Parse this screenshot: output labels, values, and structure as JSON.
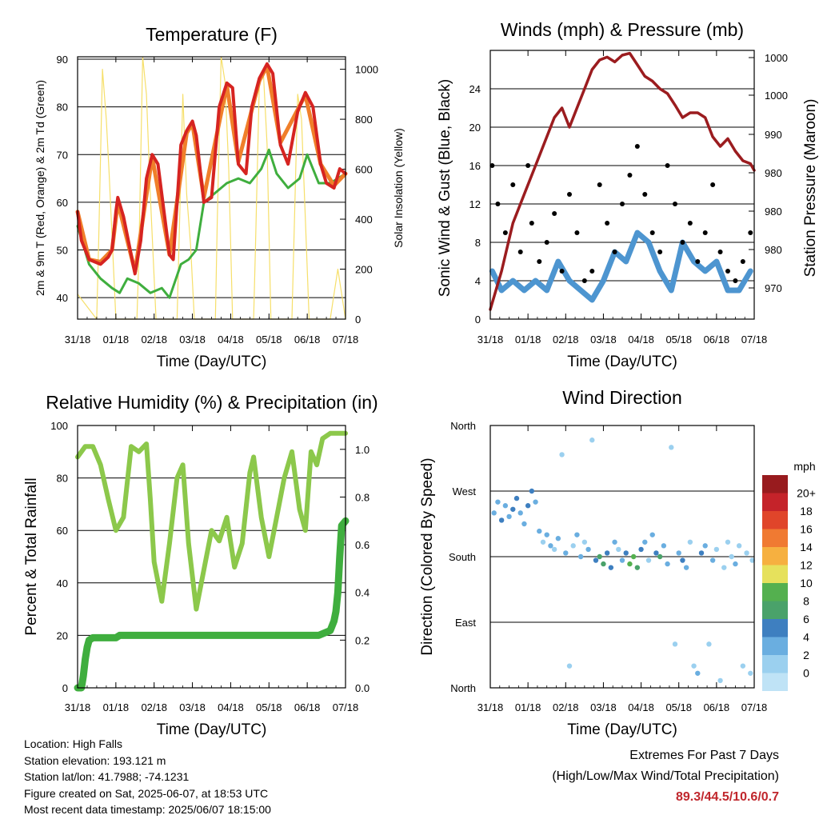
{
  "colors": {
    "temp_2m": "#d62421",
    "temp_9m": "#f07f2a",
    "dewpoint": "#3fae3e",
    "solar": "#f6df6a",
    "wind": "#4d95d0",
    "gust": "#000000",
    "pressure": "#9b1c1f",
    "rh": "#8cc84b",
    "precip": "#3fae3e"
  },
  "chart_data": [
    {
      "type": "line",
      "title": "Temperature (F)",
      "xlabel": "Time (Day/UTC)",
      "ylabel": "2m & 9m T (Red, Orange) & 2m Td (Green)",
      "y2label": "Solar Insolation (Yellow)",
      "x_ticks": [
        "31/18",
        "01/18",
        "02/18",
        "03/18",
        "04/18",
        "05/18",
        "06/18",
        "07/18"
      ],
      "xlim": [
        0,
        7
      ],
      "ylim": [
        35.5,
        90.5
      ],
      "y_ticks": [
        40,
        50,
        60,
        70,
        80,
        90
      ],
      "y2lim": [
        0,
        1050
      ],
      "y2_ticks": [
        0,
        200,
        400,
        600,
        800,
        1000
      ],
      "grid": true,
      "series": [
        {
          "name": "2m T",
          "axis": "left",
          "x": [
            0,
            0.1,
            0.3,
            0.6,
            0.8,
            0.9,
            1.0,
            1.05,
            1.2,
            1.5,
            1.65,
            1.8,
            1.95,
            2.1,
            2.4,
            2.5,
            2.7,
            2.85,
            3.0,
            3.1,
            3.3,
            3.5,
            3.7,
            3.9,
            4.05,
            4.2,
            4.4,
            4.55,
            4.75,
            4.95,
            5.1,
            5.3,
            5.5,
            5.75,
            5.95,
            6.15,
            6.35,
            6.5,
            6.7,
            6.85,
            7.0
          ],
          "y": [
            58,
            52,
            48,
            47,
            48.5,
            50,
            58,
            61,
            57,
            45,
            52,
            65,
            70,
            68,
            49,
            48,
            72,
            75,
            77,
            74,
            60,
            61,
            80,
            85,
            84,
            68,
            66,
            80,
            86,
            89,
            87,
            72,
            68,
            79,
            83,
            80,
            68,
            64,
            63,
            67,
            66
          ]
        },
        {
          "name": "9m T",
          "axis": "left",
          "x": [
            0,
            0.3,
            0.6,
            0.9,
            1.05,
            1.5,
            1.95,
            2.4,
            2.85,
            3.0,
            3.3,
            3.9,
            4.2,
            4.75,
            4.95,
            5.3,
            5.95,
            6.35,
            6.7,
            7.0
          ],
          "y": [
            58,
            48,
            47.5,
            50,
            60,
            45.5,
            69.5,
            49,
            74.5,
            76.5,
            61,
            84.5,
            68.5,
            85.5,
            88.5,
            72.5,
            82.5,
            68,
            63.5,
            66
          ]
        },
        {
          "name": "2m Td",
          "axis": "left",
          "x": [
            0,
            0.3,
            0.6,
            0.9,
            1.1,
            1.3,
            1.6,
            1.9,
            2.2,
            2.4,
            2.7,
            2.9,
            3.1,
            3.3,
            3.6,
            3.9,
            4.2,
            4.5,
            4.8,
            5.0,
            5.2,
            5.5,
            5.8,
            6.0,
            6.3,
            6.6,
            7.0
          ],
          "y": [
            55,
            47,
            44,
            42,
            41,
            44,
            43,
            41,
            42,
            40,
            47,
            48,
            50,
            60,
            62,
            64,
            65,
            64,
            67,
            71,
            66,
            63,
            65,
            70,
            64,
            64,
            66
          ]
        },
        {
          "name": "Solar Insolation",
          "axis": "right",
          "x": [
            0,
            0.5,
            0.55,
            0.65,
            0.75,
            0.82,
            1.0,
            1.55,
            1.6,
            1.7,
            1.8,
            1.9,
            2.05,
            2.6,
            2.65,
            2.75,
            2.85,
            2.95,
            3.05,
            3.6,
            3.65,
            3.75,
            3.85,
            3.95,
            4.05,
            4.6,
            4.65,
            4.75,
            4.85,
            4.95,
            5.05,
            5.6,
            5.65,
            5.75,
            5.85,
            5.95,
            6.05,
            6.6,
            6.7,
            6.8,
            6.9,
            7.0
          ],
          "y": [
            100,
            0,
            300,
            1000,
            800,
            600,
            0,
            0,
            250,
            1050,
            900,
            500,
            0,
            0,
            300,
            900,
            500,
            300,
            0,
            0,
            400,
            1050,
            950,
            600,
            0,
            0,
            300,
            950,
            1000,
            700,
            0,
            0,
            300,
            900,
            800,
            400,
            0,
            0,
            100,
            200,
            100,
            0
          ]
        }
      ]
    },
    {
      "type": "scatter",
      "title": "Winds (mph) & Pressure (mb)",
      "xlabel": "Time (Day/UTC)",
      "ylabel": "Sonic Wind & Gust (Blue, Black)",
      "y2label": "Station Pressure (Maroon)",
      "x_ticks": [
        "31/18",
        "01/18",
        "02/18",
        "03/18",
        "04/18",
        "05/18",
        "06/18",
        "07/18"
      ],
      "xlim": [
        0,
        7
      ],
      "ylim": [
        0,
        28
      ],
      "y_ticks": [
        0,
        4,
        8,
        12,
        16,
        20,
        24
      ],
      "y2_tick_labels": [
        "970",
        "980",
        "980",
        "980",
        "990",
        "1000",
        "1000"
      ],
      "grid": true,
      "series": [
        {
          "name": "Station Pressure",
          "axis": "right",
          "x": [
            0,
            0.3,
            0.6,
            0.9,
            1.2,
            1.5,
            1.7,
            1.9,
            2.1,
            2.3,
            2.5,
            2.7,
            2.9,
            3.1,
            3.3,
            3.5,
            3.7,
            3.9,
            4.1,
            4.3,
            4.5,
            4.7,
            4.9,
            5.1,
            5.3,
            5.5,
            5.7,
            5.9,
            6.1,
            6.3,
            6.5,
            6.7,
            6.9,
            7.0
          ],
          "y": [
            1,
            5,
            10,
            13,
            16,
            19,
            21,
            22,
            20,
            22,
            24,
            26,
            27,
            27.3,
            26.8,
            27.5,
            27.7,
            26.5,
            25.3,
            24.8,
            24,
            23.5,
            22.3,
            21,
            21.5,
            21.5,
            21,
            19,
            18,
            18.8,
            17.5,
            16.5,
            16.2,
            15.5
          ]
        },
        {
          "name": "Gust",
          "axis": "left",
          "x": [
            0.05,
            0.2,
            0.4,
            0.6,
            0.8,
            1.0,
            1.1,
            1.3,
            1.5,
            1.7,
            1.9,
            2.1,
            2.3,
            2.5,
            2.7,
            2.9,
            3.1,
            3.3,
            3.5,
            3.7,
            3.9,
            4.1,
            4.3,
            4.5,
            4.7,
            4.9,
            5.1,
            5.3,
            5.5,
            5.7,
            5.9,
            6.1,
            6.3,
            6.5,
            6.7,
            6.9
          ],
          "y": [
            16,
            12,
            9,
            14,
            7,
            16,
            10,
            6,
            8,
            11,
            5,
            13,
            9,
            4,
            5,
            14,
            10,
            7,
            12,
            15,
            18,
            13,
            9,
            7,
            16,
            12,
            8,
            10,
            6,
            9,
            14,
            7,
            5,
            4,
            6,
            9
          ]
        },
        {
          "name": "Wind",
          "axis": "left",
          "x": [
            0.05,
            0.3,
            0.6,
            0.9,
            1.2,
            1.5,
            1.8,
            2.1,
            2.4,
            2.7,
            3.0,
            3.3,
            3.6,
            3.9,
            4.2,
            4.5,
            4.8,
            5.1,
            5.4,
            5.7,
            6.0,
            6.3,
            6.6,
            6.9
          ],
          "y": [
            5,
            3,
            4,
            3,
            4,
            3,
            6,
            4,
            3,
            2,
            4,
            7,
            6,
            9,
            8,
            5,
            3,
            8,
            6,
            5,
            6,
            3,
            3,
            5
          ]
        }
      ]
    },
    {
      "type": "line",
      "title": "Relative Humidity (%) & Precipitation (in)",
      "xlabel": "Time (Day/UTC)",
      "ylabel": "Percent & Total Rainfall",
      "x_ticks": [
        "31/18",
        "01/18",
        "02/18",
        "03/18",
        "04/18",
        "05/18",
        "06/18",
        "07/18"
      ],
      "xlim": [
        0,
        7
      ],
      "ylim": [
        0,
        100
      ],
      "y_ticks": [
        0,
        20,
        40,
        60,
        80,
        100
      ],
      "y2lim": [
        0,
        1.1
      ],
      "y2_ticks": [
        "0.0",
        "0.2",
        "0.4",
        "0.6",
        "0.8",
        "1.0"
      ],
      "grid": true,
      "series": [
        {
          "name": "Relative Humidity",
          "axis": "left",
          "x": [
            0,
            0.2,
            0.4,
            0.6,
            0.8,
            1.0,
            1.2,
            1.4,
            1.6,
            1.8,
            1.9,
            2.0,
            2.2,
            2.4,
            2.6,
            2.75,
            2.9,
            3.1,
            3.3,
            3.5,
            3.7,
            3.9,
            4.1,
            4.3,
            4.5,
            4.6,
            4.8,
            5.0,
            5.2,
            5.4,
            5.6,
            5.8,
            5.95,
            6.1,
            6.25,
            6.4,
            6.6,
            6.8,
            7.0
          ],
          "y": [
            88,
            92,
            92,
            85,
            72,
            60,
            65,
            92,
            90,
            93,
            72,
            48,
            33,
            55,
            80,
            85,
            55,
            30,
            45,
            60,
            56,
            65,
            46,
            55,
            82,
            88,
            65,
            50,
            65,
            80,
            90,
            68,
            60,
            90,
            85,
            95,
            97,
            97,
            97
          ]
        },
        {
          "name": "Total Rainfall",
          "axis": "right",
          "x": [
            0,
            0.1,
            0.15,
            0.2,
            0.25,
            0.3,
            0.4,
            0.6,
            1.0,
            1.1,
            1.5,
            3.0,
            5.0,
            6.3,
            6.6,
            6.7,
            6.75,
            6.8,
            6.85,
            6.9,
            7.0
          ],
          "y": [
            0,
            0,
            0.05,
            0.12,
            0.17,
            0.2,
            0.21,
            0.21,
            0.21,
            0.22,
            0.22,
            0.22,
            0.22,
            0.22,
            0.24,
            0.28,
            0.32,
            0.4,
            0.55,
            0.68,
            0.7
          ]
        }
      ]
    },
    {
      "type": "scatter",
      "title": "Wind Direction",
      "xlabel": "Time (Day/UTC)",
      "ylabel": "Direction (Colored By Speed)",
      "x_ticks": [
        "31/18",
        "01/18",
        "02/18",
        "03/18",
        "04/18",
        "05/18",
        "06/18",
        "07/18"
      ],
      "xlim": [
        0,
        7
      ],
      "y_tick_labels": [
        "North",
        "East",
        "South",
        "West",
        "North"
      ],
      "ylim": [
        0,
        360
      ],
      "colorbar_title": "mph",
      "colorbar_labels": [
        "0",
        "2",
        "4",
        "6",
        "8",
        "10",
        "12",
        "14",
        "16",
        "18",
        "20+"
      ],
      "colorbar_colors": [
        "#bfe3f6",
        "#9bd0ef",
        "#6aaee0",
        "#3e7fc0",
        "#4aa26a",
        "#54b04f",
        "#e6e15c",
        "#f6b040",
        "#f07a32",
        "#e0452a",
        "#c5232a",
        "#981b1e"
      ],
      "points": [
        [
          0.1,
          240,
          3
        ],
        [
          0.2,
          255,
          4
        ],
        [
          0.3,
          230,
          5
        ],
        [
          0.4,
          250,
          3
        ],
        [
          0.5,
          235,
          4
        ],
        [
          0.6,
          245,
          6
        ],
        [
          0.7,
          260,
          5
        ],
        [
          0.8,
          240,
          4
        ],
        [
          0.9,
          225,
          3
        ],
        [
          1.0,
          250,
          5
        ],
        [
          1.1,
          270,
          6
        ],
        [
          1.2,
          255,
          4
        ],
        [
          1.3,
          215,
          3
        ],
        [
          1.4,
          200,
          2
        ],
        [
          1.5,
          210,
          3
        ],
        [
          1.6,
          195,
          4
        ],
        [
          1.7,
          190,
          2
        ],
        [
          1.8,
          205,
          3
        ],
        [
          1.9,
          320,
          2
        ],
        [
          2.0,
          185,
          3
        ],
        [
          2.1,
          30,
          1
        ],
        [
          2.2,
          195,
          2
        ],
        [
          2.3,
          210,
          4
        ],
        [
          2.4,
          180,
          3
        ],
        [
          2.5,
          200,
          2
        ],
        [
          2.6,
          190,
          3
        ],
        [
          2.7,
          340,
          1
        ],
        [
          2.8,
          175,
          5
        ],
        [
          2.9,
          180,
          7
        ],
        [
          3.0,
          170,
          8
        ],
        [
          3.1,
          185,
          6
        ],
        [
          3.2,
          165,
          5
        ],
        [
          3.3,
          200,
          3
        ],
        [
          3.4,
          190,
          2
        ],
        [
          3.5,
          175,
          4
        ],
        [
          3.6,
          185,
          6
        ],
        [
          3.7,
          170,
          9
        ],
        [
          3.8,
          180,
          10
        ],
        [
          3.9,
          165,
          8
        ],
        [
          4.0,
          190,
          5
        ],
        [
          4.1,
          200,
          3
        ],
        [
          4.2,
          175,
          2
        ],
        [
          4.3,
          210,
          3
        ],
        [
          4.4,
          185,
          5
        ],
        [
          4.5,
          180,
          7
        ],
        [
          4.6,
          195,
          4
        ],
        [
          4.7,
          170,
          3
        ],
        [
          4.8,
          330,
          2
        ],
        [
          4.9,
          60,
          2
        ],
        [
          5.0,
          185,
          4
        ],
        [
          5.1,
          175,
          5
        ],
        [
          5.2,
          165,
          3
        ],
        [
          5.3,
          200,
          2
        ],
        [
          5.4,
          30,
          2
        ],
        [
          5.5,
          20,
          3
        ],
        [
          5.6,
          185,
          5
        ],
        [
          5.7,
          195,
          4
        ],
        [
          5.8,
          60,
          2
        ],
        [
          5.9,
          175,
          3
        ],
        [
          6.0,
          190,
          2
        ],
        [
          6.1,
          10,
          2
        ],
        [
          6.2,
          165,
          2
        ],
        [
          6.3,
          200,
          1
        ],
        [
          6.4,
          180,
          2
        ],
        [
          6.5,
          170,
          3
        ],
        [
          6.6,
          195,
          1
        ],
        [
          6.7,
          30,
          1
        ],
        [
          6.8,
          185,
          1
        ],
        [
          6.9,
          20,
          2
        ],
        [
          6.95,
          175,
          1
        ]
      ]
    }
  ],
  "info": {
    "location": "Location: High Falls",
    "elevation": "Station elevation: 193.121 m",
    "latlon": "Station lat/lon: 41.7988; -74.1231",
    "created": "Figure created on Sat, 2025-06-07, at 18:53 UTC",
    "recent": "Most recent data timestamp: 2025/06/07 18:15:00"
  },
  "extremes": {
    "title": "Extremes For Past 7 Days",
    "subtitle": "(High/Low/Max Wind/Total Precipitation)",
    "values": "89.3/44.5/10.6/0.7"
  }
}
